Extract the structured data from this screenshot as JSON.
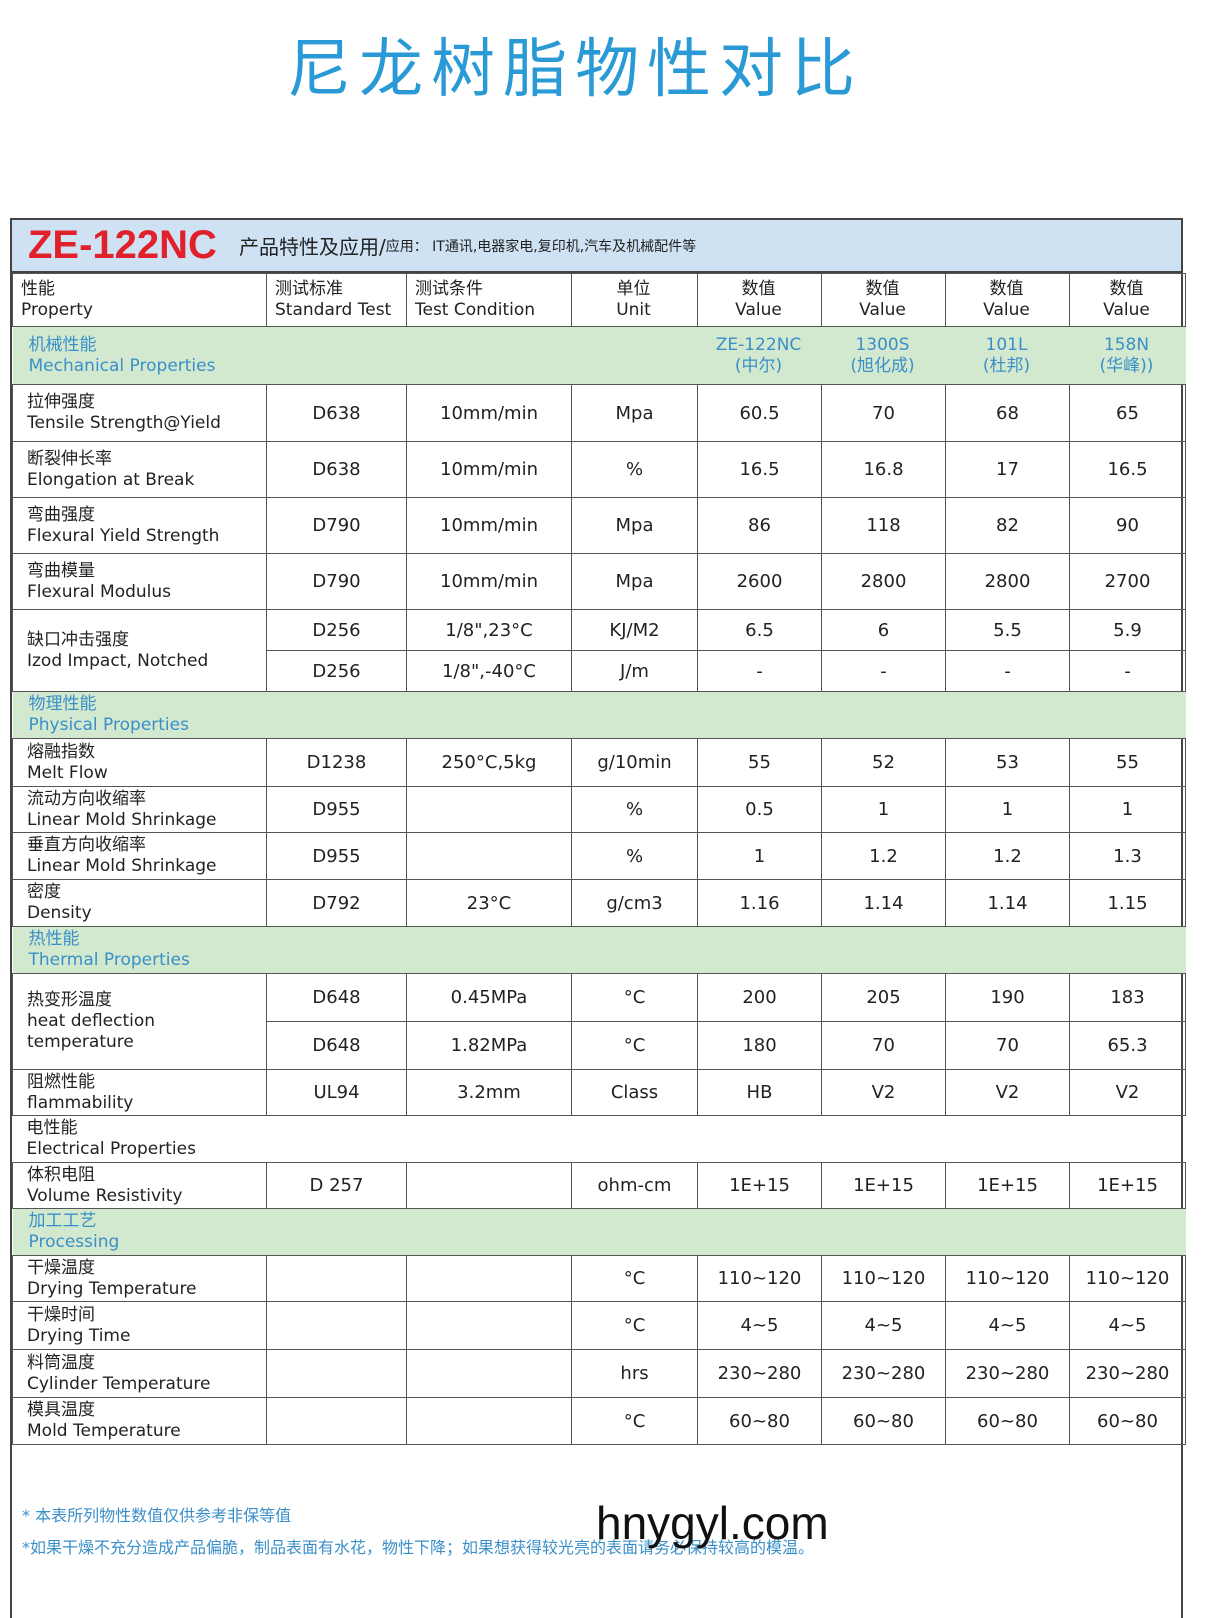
{
  "title": "尼龙树脂物性对比",
  "banner": {
    "model": "ZE-122NC",
    "features": "产品特性及应用/",
    "application": "应用： IT通讯,电器家电,复印机,汽车及机械配件等"
  },
  "headers": [
    [
      "性能",
      "Property"
    ],
    [
      "测试标准",
      "Standard Test"
    ],
    [
      "测试条件",
      "Test Condition"
    ],
    [
      "单位",
      "Unit"
    ],
    [
      "数值",
      "Value"
    ],
    [
      "数值",
      "Value"
    ],
    [
      "数值",
      "Value"
    ],
    [
      "数值",
      "Value"
    ]
  ],
  "models": [
    [
      "ZE-122NC",
      "(中尔)"
    ],
    [
      "1300S",
      "(旭化成)"
    ],
    [
      "101L",
      "(杜邦)"
    ],
    [
      "158N",
      "(华峰))"
    ]
  ],
  "sections": [
    {
      "cn": "机械性能",
      "en": "Mechanical Properties",
      "show_models": true,
      "rows": [
        {
          "cn": "拉伸强度",
          "en": "Tensile Strength@Yield",
          "h": 57,
          "sub": [
            [
              "D638",
              "10mm/min",
              "Mpa",
              "60.5",
              "70",
              "68",
              "65"
            ]
          ]
        },
        {
          "cn": "断裂伸长率",
          "en": "Elongation at Break",
          "h": 56,
          "sub": [
            [
              "D638",
              "10mm/min",
              "%",
              "16.5",
              "16.8",
              "17",
              "16.5"
            ]
          ]
        },
        {
          "cn": "弯曲强度",
          "en": "Flexural Yield Strength",
          "h": 56,
          "sub": [
            [
              "D790",
              "10mm/min",
              "Mpa",
              "86",
              "118",
              "82",
              "90"
            ]
          ]
        },
        {
          "cn": "弯曲模量",
          "en": "Flexural Modulus",
          "h": 56,
          "sub": [
            [
              "D790",
              "10mm/min",
              "Mpa",
              "2600",
              "2800",
              "2800",
              "2700"
            ]
          ]
        },
        {
          "cn": "缺口冲击强度",
          "en": "Izod Impact, Notched",
          "h": 41,
          "sub": [
            [
              "D256",
              "1/8\",23°C",
              "KJ/M2",
              "6.5",
              "6",
              "5.5",
              "5.9"
            ],
            [
              "D256",
              "1/8\",-40°C",
              "J/m",
              "-",
              "-",
              "-",
              "-"
            ]
          ]
        }
      ]
    },
    {
      "cn": "物理性能",
      "en": "Physical Properties",
      "rows": [
        {
          "cn": "熔融指数",
          "en": "Melt Flow",
          "h": 48,
          "sub": [
            [
              "D1238",
              "250°C,5kg",
              "g/10min",
              "55",
              "52",
              "53",
              "55"
            ]
          ]
        },
        {
          "cn": "流动方向收缩率",
          "en": "Linear Mold Shrinkage",
          "h": 46,
          "sub": [
            [
              "D955",
              "",
              "%",
              "0.5",
              "1",
              "1",
              "1"
            ]
          ]
        },
        {
          "cn": "垂直方向收缩率",
          "en": "Linear Mold Shrinkage",
          "h": 47,
          "sub": [
            [
              "D955",
              "",
              "%",
              "1",
              "1.2",
              "1.2",
              "1.3"
            ]
          ]
        },
        {
          "cn": "密度",
          "en": "Density",
          "h": 47,
          "sub": [
            [
              "D792",
              "23°C",
              "g/cm3",
              "1.16",
              "1.14",
              "1.14",
              "1.15"
            ]
          ]
        }
      ]
    },
    {
      "cn": "热性能",
      "en": "Thermal Properties",
      "rows": [
        {
          "cn": "热变形温度",
          "en": "heat deflection temperature",
          "h": 48,
          "sub": [
            [
              "D648",
              "0.45MPa",
              "°C",
              "200",
              "205",
              "190",
              "183"
            ],
            [
              "D648",
              "1.82MPa",
              "°C",
              "180",
              "70",
              "70",
              "65.3"
            ]
          ]
        },
        {
          "cn": "阻燃性能",
          "en": "flammability",
          "h": 46,
          "sub": [
            [
              "UL94",
              "3.2mm",
              "Class",
              "HB",
              "V2",
              "V2",
              "V2"
            ]
          ]
        }
      ]
    },
    {
      "cn": "电性能",
      "en": "Electrical Properties",
      "plain": true,
      "rows": [
        {
          "cn": "体积电阻",
          "en": "Volume Resistivity",
          "h": 46,
          "sub": [
            [
              "D 257",
              "",
              "ohm-cm",
              "1E+15",
              "1E+15",
              "1E+15",
              "1E+15"
            ]
          ]
        }
      ]
    },
    {
      "cn": "加工工艺",
      "en": "Processing",
      "rows": [
        {
          "cn": "干燥温度",
          "en": "Drying Temperature",
          "h": 46,
          "sub": [
            [
              "",
              "",
              "°C",
              "110~120",
              "110~120",
              "110~120",
              "110~120"
            ]
          ]
        },
        {
          "cn": "干燥时间",
          "en": "Drying Time",
          "h": 48,
          "sub": [
            [
              "",
              "",
              "°C",
              "4~5",
              "4~5",
              "4~5",
              "4~5"
            ]
          ]
        },
        {
          "cn": "料筒温度",
          "en": "Cylinder Temperature",
          "h": 48,
          "sub": [
            [
              "",
              "",
              "hrs",
              "230~280",
              "230~280",
              "230~280",
              "230~280"
            ]
          ]
        },
        {
          "cn": "模具温度",
          "en": "Mold Temperature",
          "h": 47,
          "sub": [
            [
              "",
              "",
              "°C",
              "60~80",
              "60~80",
              "60~80",
              "60~80"
            ]
          ]
        }
      ]
    }
  ],
  "footnotes": [
    "* 本表所列物性数值仅供参考非保等值",
    "*如果干燥不充分造成产品偏脆，制品表面有水花，物性下降；如果想获得较光亮的表面请务必保持较高的模温。"
  ],
  "watermark": "hnygyl.com",
  "colors": {
    "title": "#2a9ad6",
    "model": "#e0202a",
    "banner_bg": "#cfe2f4",
    "section_bg": "#d3e9cf",
    "section_text": "#3a8fc9"
  }
}
